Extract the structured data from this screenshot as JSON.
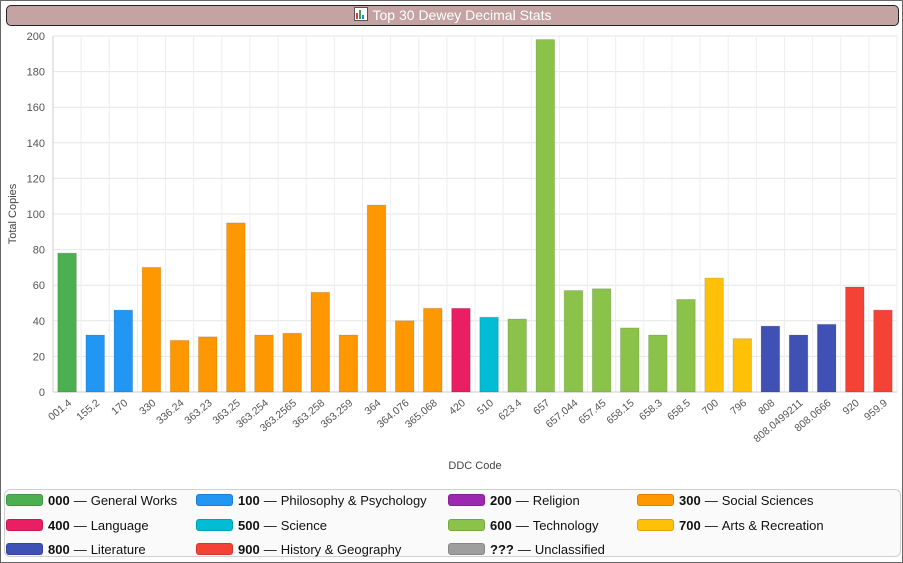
{
  "window": {
    "title": "Top 30 Dewey Decimal Stats"
  },
  "chart_data": {
    "type": "bar",
    "ylabel": "Total Copies",
    "xlabel": "DDC Code",
    "ylim": [
      0,
      200
    ],
    "yticks": [
      0,
      20,
      40,
      60,
      80,
      100,
      120,
      140,
      160,
      180,
      200
    ],
    "grid": true,
    "legend_position": "bottom",
    "categories": [
      "001.4",
      "155.2",
      "170",
      "330",
      "336.24",
      "363.23",
      "363.25",
      "363.254",
      "363.2565",
      "363.258",
      "363.259",
      "364",
      "364.076",
      "365.068",
      "420",
      "510",
      "623.4",
      "657",
      "657.044",
      "657.45",
      "658.15",
      "658.3",
      "658.5",
      "700",
      "796",
      "808",
      "808.0499211",
      "808.0666",
      "920",
      "959.9"
    ],
    "values": [
      78,
      32,
      46,
      70,
      29,
      31,
      95,
      32,
      33,
      56,
      32,
      105,
      40,
      47,
      47,
      42,
      41,
      198,
      57,
      58,
      36,
      32,
      52,
      64,
      30,
      37,
      32,
      38,
      59,
      46
    ],
    "groups": [
      "000",
      "100",
      "100",
      "300",
      "300",
      "300",
      "300",
      "300",
      "300",
      "300",
      "300",
      "300",
      "300",
      "300",
      "400",
      "500",
      "600",
      "600",
      "600",
      "600",
      "600",
      "600",
      "600",
      "700",
      "700",
      "800",
      "800",
      "800",
      "900",
      "900"
    ]
  },
  "legend": [
    {
      "code": "000",
      "label": "General Works",
      "color": "#4caf50"
    },
    {
      "code": "100",
      "label": "Philosophy & Psychology",
      "color": "#2196f3"
    },
    {
      "code": "200",
      "label": "Religion",
      "color": "#9c27b0"
    },
    {
      "code": "300",
      "label": "Social Sciences",
      "color": "#ff9800"
    },
    {
      "code": "400",
      "label": "Language",
      "color": "#e91e63"
    },
    {
      "code": "500",
      "label": "Science",
      "color": "#00bcd4"
    },
    {
      "code": "600",
      "label": "Technology",
      "color": "#8bc34a"
    },
    {
      "code": "700",
      "label": "Arts & Recreation",
      "color": "#ffc107"
    },
    {
      "code": "800",
      "label": "Literature",
      "color": "#3f51b5"
    },
    {
      "code": "900",
      "label": "History & Geography",
      "color": "#f44336"
    },
    {
      "code": "???",
      "label": "Unclassified",
      "color": "#9e9e9e"
    }
  ],
  "legend_separator": "—"
}
